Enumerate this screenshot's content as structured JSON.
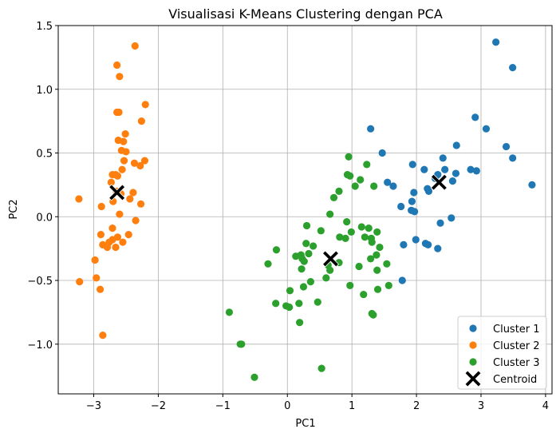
{
  "chart_data": {
    "type": "scatter",
    "title": "Visualisasi K-Means Clustering dengan PCA",
    "xlabel": "PC1",
    "ylabel": "PC2",
    "xlim": [
      -3.55,
      4.1
    ],
    "ylim": [
      -1.39,
      1.5
    ],
    "xticks": [
      -3,
      -2,
      -1,
      0,
      1,
      2,
      3,
      4
    ],
    "xtick_labels": [
      "−3",
      "−2",
      "−1",
      "0",
      "1",
      "2",
      "3",
      "4"
    ],
    "yticks": [
      -1.0,
      -0.5,
      0.0,
      0.5,
      1.0,
      1.5
    ],
    "ytick_labels": [
      "−1.0",
      "−0.5",
      "0.0",
      "0.5",
      "1.0",
      "1.5"
    ],
    "grid": true,
    "legend_position": "lower-right",
    "series": [
      {
        "name": "Cluster 1",
        "color": "#1f77b4",
        "marker": "circle",
        "points": [
          [
            3.23,
            1.37
          ],
          [
            3.49,
            1.17
          ],
          [
            2.91,
            0.78
          ],
          [
            3.08,
            0.69
          ],
          [
            1.29,
            0.69
          ],
          [
            2.62,
            0.56
          ],
          [
            3.39,
            0.55
          ],
          [
            1.47,
            0.5
          ],
          [
            2.41,
            0.46
          ],
          [
            3.49,
            0.46
          ],
          [
            1.94,
            0.41
          ],
          [
            2.12,
            0.37
          ],
          [
            2.44,
            0.37
          ],
          [
            2.84,
            0.37
          ],
          [
            2.93,
            0.36
          ],
          [
            2.33,
            0.33
          ],
          [
            2.61,
            0.34
          ],
          [
            2.29,
            0.3
          ],
          [
            1.55,
            0.27
          ],
          [
            1.64,
            0.24
          ],
          [
            2.56,
            0.28
          ],
          [
            3.79,
            0.25
          ],
          [
            2.17,
            0.22
          ],
          [
            1.96,
            0.19
          ],
          [
            2.19,
            0.2
          ],
          [
            1.93,
            0.12
          ],
          [
            1.76,
            0.08
          ],
          [
            1.92,
            0.05
          ],
          [
            1.97,
            0.04
          ],
          [
            2.54,
            -0.01
          ],
          [
            2.37,
            -0.05
          ],
          [
            1.99,
            -0.18
          ],
          [
            2.14,
            -0.21
          ],
          [
            2.18,
            -0.22
          ],
          [
            1.8,
            -0.22
          ],
          [
            2.33,
            -0.25
          ],
          [
            1.78,
            -0.5
          ]
        ]
      },
      {
        "name": "Cluster 2",
        "color": "#ff7f0e",
        "marker": "circle",
        "points": [
          [
            -2.36,
            1.34
          ],
          [
            -2.64,
            1.19
          ],
          [
            -2.6,
            1.1
          ],
          [
            -2.2,
            0.88
          ],
          [
            -2.64,
            0.82
          ],
          [
            -2.61,
            0.82
          ],
          [
            -2.26,
            0.75
          ],
          [
            -2.51,
            0.65
          ],
          [
            -2.62,
            0.6
          ],
          [
            -2.54,
            0.59
          ],
          [
            -2.57,
            0.52
          ],
          [
            -2.5,
            0.51
          ],
          [
            -2.53,
            0.44
          ],
          [
            -2.21,
            0.44
          ],
          [
            -2.37,
            0.42
          ],
          [
            -2.28,
            0.4
          ],
          [
            -2.56,
            0.37
          ],
          [
            -2.71,
            0.33
          ],
          [
            -2.66,
            0.33
          ],
          [
            -2.63,
            0.32
          ],
          [
            -2.73,
            0.27
          ],
          [
            -2.65,
            0.2
          ],
          [
            -2.39,
            0.19
          ],
          [
            -2.58,
            0.18
          ],
          [
            -2.44,
            0.14
          ],
          [
            -2.7,
            0.12
          ],
          [
            -2.27,
            0.1
          ],
          [
            -2.88,
            0.08
          ],
          [
            -2.6,
            0.02
          ],
          [
            -2.35,
            -0.03
          ],
          [
            -2.71,
            -0.09
          ],
          [
            -2.89,
            -0.14
          ],
          [
            -2.46,
            -0.14
          ],
          [
            -2.63,
            -0.16
          ],
          [
            -2.71,
            -0.18
          ],
          [
            -2.76,
            -0.2
          ],
          [
            -2.55,
            -0.2
          ],
          [
            -2.86,
            -0.22
          ],
          [
            -2.79,
            -0.24
          ],
          [
            -2.66,
            -0.24
          ],
          [
            -3.23,
            0.14
          ],
          [
            -2.98,
            -0.34
          ],
          [
            -2.96,
            -0.48
          ],
          [
            -3.22,
            -0.51
          ],
          [
            -2.9,
            -0.57
          ],
          [
            -2.86,
            -0.93
          ]
        ]
      },
      {
        "name": "Cluster 3",
        "color": "#2ca02c",
        "marker": "circle",
        "points": [
          [
            0.95,
            0.47
          ],
          [
            1.23,
            0.41
          ],
          [
            0.93,
            0.33
          ],
          [
            0.97,
            0.32
          ],
          [
            1.13,
            0.29
          ],
          [
            1.34,
            0.24
          ],
          [
            1.05,
            0.24
          ],
          [
            0.8,
            0.2
          ],
          [
            0.72,
            0.15
          ],
          [
            0.66,
            0.02
          ],
          [
            0.92,
            -0.04
          ],
          [
            0.3,
            -0.07
          ],
          [
            1.15,
            -0.08
          ],
          [
            0.99,
            -0.12
          ],
          [
            0.52,
            -0.11
          ],
          [
            1.26,
            -0.09
          ],
          [
            1.39,
            -0.12
          ],
          [
            0.81,
            -0.16
          ],
          [
            0.9,
            -0.17
          ],
          [
            1.2,
            -0.16
          ],
          [
            1.3,
            -0.17
          ],
          [
            1.31,
            -0.2
          ],
          [
            0.29,
            -0.21
          ],
          [
            0.4,
            -0.23
          ],
          [
            -0.17,
            -0.26
          ],
          [
            1.43,
            -0.24
          ],
          [
            0.21,
            -0.3
          ],
          [
            0.33,
            -0.29
          ],
          [
            1.38,
            -0.3
          ],
          [
            0.13,
            -0.31
          ],
          [
            0.23,
            -0.33
          ],
          [
            1.29,
            -0.33
          ],
          [
            0.26,
            -0.35
          ],
          [
            0.8,
            -0.36
          ],
          [
            1.54,
            -0.37
          ],
          [
            -0.3,
            -0.37
          ],
          [
            0.63,
            -0.38
          ],
          [
            0.22,
            -0.41
          ],
          [
            1.11,
            -0.39
          ],
          [
            0.66,
            -0.42
          ],
          [
            1.39,
            -0.42
          ],
          [
            0.6,
            -0.48
          ],
          [
            0.36,
            -0.51
          ],
          [
            1.57,
            -0.54
          ],
          [
            0.97,
            -0.54
          ],
          [
            0.25,
            -0.55
          ],
          [
            1.4,
            -0.57
          ],
          [
            0.04,
            -0.58
          ],
          [
            1.18,
            -0.61
          ],
          [
            0.18,
            -0.68
          ],
          [
            -0.18,
            -0.68
          ],
          [
            0.47,
            -0.67
          ],
          [
            -0.02,
            -0.7
          ],
          [
            0.03,
            -0.71
          ],
          [
            1.31,
            -0.76
          ],
          [
            1.33,
            -0.77
          ],
          [
            -0.9,
            -0.75
          ],
          [
            0.19,
            -0.83
          ],
          [
            -0.73,
            -1.0
          ],
          [
            -0.71,
            -1.0
          ],
          [
            0.53,
            -1.19
          ],
          [
            -0.51,
            -1.26
          ]
        ]
      },
      {
        "name": "Centroid",
        "color": "#000000",
        "marker": "x",
        "points": [
          [
            2.35,
            0.27
          ],
          [
            -2.64,
            0.19
          ],
          [
            0.67,
            -0.33
          ]
        ]
      }
    ]
  }
}
